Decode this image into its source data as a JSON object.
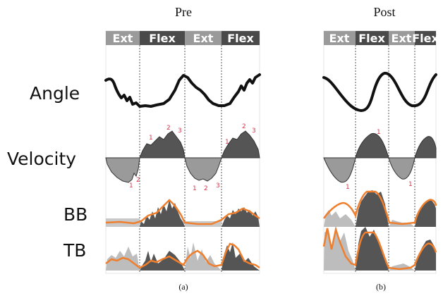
{
  "panels": [
    {
      "id": "pre",
      "title": "Pre",
      "caption": "(a)",
      "phases": [
        "Ext",
        "Flex",
        "Ext",
        "Flex"
      ],
      "peaks_extension": [
        [
          "1",
          "2"
        ],
        [
          "1",
          "2",
          "3"
        ]
      ],
      "peaks_flexion": [
        [
          "1",
          "2",
          "3"
        ],
        [
          "1",
          "2",
          "3"
        ]
      ]
    },
    {
      "id": "post",
      "title": "Post",
      "caption": "(b)",
      "phases": [
        "Ext",
        "Flex",
        "Ext",
        "Flex"
      ],
      "peaks_extension": [
        [
          "1"
        ],
        [
          "1"
        ]
      ],
      "peaks_flexion": [
        [
          "1"
        ],
        []
      ]
    }
  ],
  "row_labels": {
    "angle": "Angle",
    "velocity": "Velocity",
    "bb": "BB",
    "tb": "TB"
  },
  "colors": {
    "ext_header": "#9a9a9a",
    "flex_header": "#4a4a4a",
    "ext_fill": "#9a9a9a",
    "flex_fill": "#555555",
    "envelope": "#f07f2d",
    "peak_label": "#d6344a"
  }
}
